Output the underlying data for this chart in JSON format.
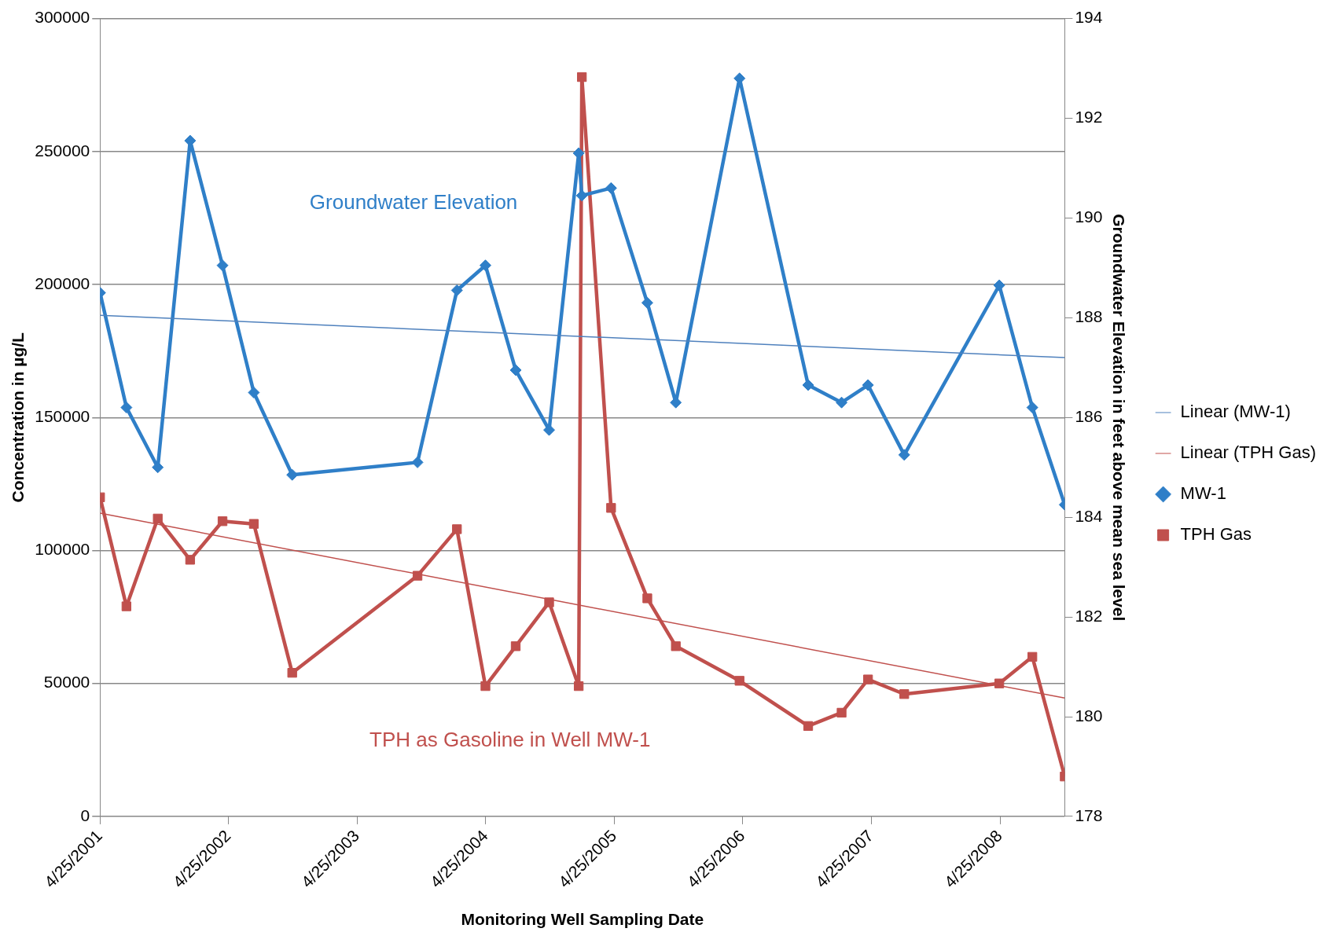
{
  "chart_data": {
    "type": "line",
    "xlabel": "Monitoring Well Sampling Date",
    "ylabel": "Concentration in µg/L",
    "y2label": "Groundwater Elevation in feet above mean sea level",
    "x": [
      "2001-04-25",
      "2001-07-09",
      "2001-10-06",
      "2002-01-06",
      "2002-04-08",
      "2002-07-06",
      "2002-10-23",
      "2003-10-14",
      "2004-02-03",
      "2004-04-24",
      "2004-07-19",
      "2004-10-22",
      "2005-01-14",
      "2005-01-23",
      "2005-04-16",
      "2005-07-28",
      "2005-10-17",
      "2006-04-16",
      "2006-10-28",
      "2007-01-31",
      "2007-04-16",
      "2007-07-28",
      "2008-04-23",
      "2008-07-26",
      "2008-10-26"
    ],
    "series": [
      {
        "name": "TPH Gas",
        "color": "#c0504d",
        "marker": "square",
        "values": [
          120000,
          79000,
          112000,
          96500,
          111000,
          110000,
          54000,
          90500,
          108000,
          49000,
          64000,
          80500,
          49000,
          278000,
          116000,
          82000,
          64000,
          51000,
          34000,
          39000,
          51500,
          46000,
          50000,
          60000,
          15000
        ]
      },
      {
        "name": "MW-1",
        "color": "#2f7fc8",
        "marker": "diamond",
        "axis": "y2",
        "values": [
          188.5,
          186.2,
          185.0,
          191.55,
          189.05,
          186.5,
          184.85,
          185.1,
          188.55,
          189.05,
          186.95,
          185.75,
          191.3,
          190.45,
          190.6,
          188.3,
          186.3,
          192.8,
          186.65,
          186.3,
          186.65,
          185.25,
          188.65,
          186.2,
          184.25
        ]
      },
      {
        "name": "Linear (TPH Gas)",
        "color": "#c0504d",
        "marker": "none",
        "x": [
          "2001-04-25",
          "2008-10-26"
        ],
        "values": [
          114000,
          44500
        ]
      },
      {
        "name": "Linear (MW-1)",
        "color": "#4f81bd",
        "marker": "none",
        "axis": "y2",
        "x": [
          "2001-04-25",
          "2008-10-26"
        ],
        "values": [
          188.05,
          187.2
        ]
      }
    ],
    "annotations": [
      "TPH as Gasoline in Well MW-1",
      "Groundwater Elevation"
    ],
    "xlim": [
      "2001-04-25",
      "2008-10-26"
    ],
    "xticks": [
      {
        "value": "2001-04-25",
        "label": "4/25/2001"
      },
      {
        "value": "2002-04-25",
        "label": "4/25/2002"
      },
      {
        "value": "2003-04-25",
        "label": "4/25/2003"
      },
      {
        "value": "2004-04-25",
        "label": "4/25/2004"
      },
      {
        "value": "2005-04-25",
        "label": "4/25/2005"
      },
      {
        "value": "2006-04-25",
        "label": "4/25/2006"
      },
      {
        "value": "2007-04-25",
        "label": "4/25/2007"
      },
      {
        "value": "2008-04-25",
        "label": "4/25/2008"
      }
    ],
    "ylim": [
      0,
      300000
    ],
    "yticks": [
      0,
      50000,
      100000,
      150000,
      200000,
      250000,
      300000
    ],
    "y2lim": [
      178,
      194
    ],
    "y2ticks": [
      178,
      180,
      182,
      184,
      186,
      188,
      190,
      192,
      194
    ],
    "grid": "y",
    "legend": "right"
  }
}
